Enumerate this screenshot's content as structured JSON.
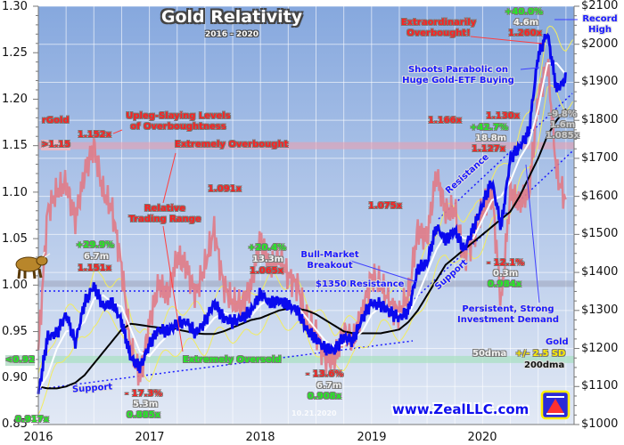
{
  "chart_data": {
    "type": "line",
    "title": "Gold Relativity",
    "subtitle": "2016 - 2020",
    "x_tick_labels": [
      "2016",
      "2017",
      "2018",
      "2019",
      "2020"
    ],
    "left_axis": {
      "ylim": [
        0.85,
        1.3
      ],
      "tick_labels": [
        "1.30",
        "1.25",
        "1.20",
        "1.15",
        "1.10",
        "1.05",
        "1.00",
        "0.95",
        "0.90",
        "0.85"
      ]
    },
    "right_axis": {
      "ylim": [
        1000,
        2100
      ],
      "tick_labels": [
        "$2100",
        "$2000",
        "$1900",
        "$1800",
        "$1700",
        "$1600",
        "$1500",
        "$1400",
        "$1300",
        "$1200",
        "$1100",
        "$1000"
      ]
    },
    "grid": true,
    "x": [
      "2016-01",
      "2016-02",
      "2016-03",
      "2016-04",
      "2016-05",
      "2016-06",
      "2016-07",
      "2016-08",
      "2016-09",
      "2016-10",
      "2016-11",
      "2016-12",
      "2017-01",
      "2017-02",
      "2017-03",
      "2017-04",
      "2017-05",
      "2017-06",
      "2017-07",
      "2017-08",
      "2017-09",
      "2017-10",
      "2017-11",
      "2017-12",
      "2018-01",
      "2018-02",
      "2018-03",
      "2018-04",
      "2018-05",
      "2018-06",
      "2018-07",
      "2018-08",
      "2018-09",
      "2018-10",
      "2018-11",
      "2018-12",
      "2019-01",
      "2019-02",
      "2019-03",
      "2019-04",
      "2019-05",
      "2019-06",
      "2019-07",
      "2019-08",
      "2019-09",
      "2019-10",
      "2019-11",
      "2019-12",
      "2020-01",
      "2020-02",
      "2020-03",
      "2020-04",
      "2020-05",
      "2020-06",
      "2020-07",
      "2020-08",
      "2020-09",
      "2020-10"
    ],
    "series": [
      {
        "name": "rGold",
        "axis": "left",
        "color": "#e07a86",
        "values": [
          0.93,
          1.08,
          1.1,
          1.11,
          1.07,
          1.12,
          1.15,
          1.1,
          1.08,
          1.02,
          0.93,
          0.9,
          0.96,
          1.0,
          0.99,
          1.03,
          1.02,
          0.99,
          1.02,
          1.06,
          1.0,
          0.98,
          0.98,
          1.0,
          1.05,
          1.02,
          1.03,
          1.01,
          1.0,
          0.96,
          0.95,
          0.92,
          0.92,
          0.95,
          0.94,
          0.97,
          1.01,
          1.0,
          0.98,
          0.97,
          0.99,
          1.06,
          1.05,
          1.12,
          1.08,
          1.08,
          1.03,
          1.05,
          1.08,
          1.1,
          0.98,
          1.1,
          1.09,
          1.1,
          1.2,
          1.24,
          1.12,
          1.09
        ]
      },
      {
        "name": "Gold",
        "axis": "right",
        "color": "#0a0aee",
        "values": [
          1080,
          1230,
          1240,
          1290,
          1215,
          1320,
          1365,
          1310,
          1320,
          1270,
          1175,
          1150,
          1210,
          1250,
          1245,
          1265,
          1270,
          1240,
          1270,
          1320,
          1280,
          1270,
          1280,
          1300,
          1345,
          1320,
          1325,
          1315,
          1300,
          1250,
          1225,
          1200,
          1195,
          1230,
          1220,
          1280,
          1320,
          1315,
          1295,
          1280,
          1300,
          1410,
          1425,
          1520,
          1485,
          1510,
          1460,
          1515,
          1580,
          1640,
          1520,
          1700,
          1730,
          1770,
          1970,
          2030,
          1880,
          1910
        ]
      },
      {
        "name": "50dma",
        "axis": "right",
        "color": "#ffffff",
        "values": [
          1090,
          1130,
          1200,
          1245,
          1250,
          1270,
          1330,
          1340,
          1320,
          1310,
          1250,
          1190,
          1180,
          1210,
          1235,
          1250,
          1260,
          1255,
          1250,
          1280,
          1295,
          1285,
          1280,
          1285,
          1315,
          1330,
          1325,
          1320,
          1310,
          1280,
          1250,
          1220,
          1205,
          1210,
          1225,
          1245,
          1290,
          1310,
          1305,
          1290,
          1290,
          1340,
          1400,
          1460,
          1500,
          1505,
          1490,
          1490,
          1540,
          1590,
          1600,
          1640,
          1700,
          1740,
          1830,
          1950,
          1950,
          1920
        ]
      },
      {
        "name": "200dma",
        "axis": "right",
        "color": "#000000",
        "values": [
          1100,
          1095,
          1095,
          1100,
          1110,
          1130,
          1160,
          1190,
          1220,
          1250,
          1265,
          1262,
          1258,
          1255,
          1253,
          1250,
          1245,
          1240,
          1238,
          1238,
          1245,
          1255,
          1265,
          1275,
          1280,
          1290,
          1300,
          1305,
          1305,
          1300,
          1290,
          1275,
          1260,
          1245,
          1240,
          1240,
          1240,
          1240,
          1245,
          1250,
          1270,
          1300,
          1340,
          1380,
          1420,
          1440,
          1460,
          1480,
          1500,
          1520,
          1540,
          1560,
          1600,
          1650,
          1700,
          1760,
          1800,
          1830
        ]
      }
    ],
    "bands": {
      "extremely_overbought": 1.15,
      "extremely_oversold": 0.92,
      "neutral": 1.0
    },
    "annotations": {
      "rgold_label": "rGold",
      "overbought_marker": ">1.15",
      "oversold_marker": "<0.92",
      "upleg_1": "Upleg-Slaying Levels",
      "upleg_2": "of Overboughtness",
      "extremely_overbought": "Extremely Overbought",
      "extremely_oversold": "Extremely Oversold",
      "relative_1": "Relative",
      "relative_2": "Trading Range",
      "r1152": "1.152x",
      "r1091": "1.091x",
      "r1075": "1.075x",
      "r1166": "1.166x",
      "r1130": "1.130x",
      "u427_pct": "+42.7%",
      "u427_days": "18.8m",
      "u427_r": "1.127x",
      "u400_pct": "+40.0%",
      "u400_days": "4.6m",
      "u400_r": "1.260x",
      "extra_1": "Extraordinarily",
      "extra_2": "Overbought!",
      "para_1": "Shoots Parabolic on",
      "para_2": "Huge Gold-ETF Buying",
      "record_1": "Record",
      "record_2": "High",
      "d98_pct": "-9.8%",
      "d98_days": "1.6m",
      "d98_r": "1.085x",
      "resistance": "Resistance",
      "support_upper": "Support",
      "support_lower": "Support",
      "u299_pct": "+29.9%",
      "u299_days": "6.7m",
      "u299_r": "1.151x",
      "u204_pct": "+20.4%",
      "u204_days": "13.3m",
      "u204_r": "1.065x",
      "bull_1": "Bull-Market",
      "bull_2": "Breakout",
      "res1350": "$1350 Resistance",
      "d121_pct": "- 12.1%",
      "d121_days": "0.3m",
      "d121_r": "0.984x",
      "persist_1": "Persistent, Strong",
      "persist_2": "Investment Demand",
      "leg_gold": "Gold",
      "leg_50": "50dma",
      "leg_sd": "+/- 2.5 SD",
      "leg_200": "200dma",
      "d173_pct": "- 17.3%",
      "d173_days": "5.3m",
      "d173_r": "0.885x",
      "d136_pct": "- 13.6%",
      "d136_days": "6.7m",
      "d136_r": "0.908x",
      "r0917": "0.917x"
    },
    "legend_placement": "bottom-right"
  },
  "footer": {
    "website": "www.ZealLLC.com",
    "date": "10.21.2020"
  },
  "icons": {
    "bull": "bull-icon",
    "logo": "zeal-logo-icon"
  }
}
